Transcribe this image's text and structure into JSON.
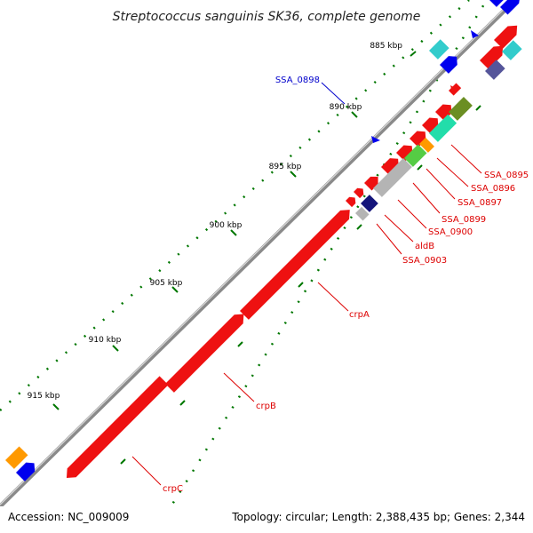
{
  "title": "Streptococcus sanguinis SK36, complete genome",
  "footer": {
    "accession": "Accession: NC_009009",
    "summary": "Topology: circular; Length: 2,388,435 bp; Genes: 2,344"
  },
  "colors": {
    "backbone": "#8a8a8a",
    "backbone_highlight": "#d8d8d8",
    "cds": "#ee1111",
    "label_red": "#dd0000",
    "label_blue": "#0000cc",
    "tick_green": "#007700",
    "rna_blue": "#0000ee",
    "cyan": "#33cccc",
    "navy": "#14147a",
    "gray": "#b4b4b4",
    "lime": "#55cc44",
    "teal": "#22ddaa",
    "olive": "#6b8e23",
    "orange": "#ff9900",
    "slate": "#55559a"
  },
  "scale_labels": [
    "885 kbp",
    "890 kbp",
    "895 kbp",
    "900 kbp",
    "905 kbp",
    "910 kbp",
    "915 kbp"
  ],
  "gene_labels": [
    {
      "text": "SSA_0898",
      "color": "blue"
    },
    {
      "text": "SSA_0895",
      "color": "red"
    },
    {
      "text": "SSA_0896",
      "color": "red"
    },
    {
      "text": "SSA_0897",
      "color": "red"
    },
    {
      "text": "SSA_0899",
      "color": "red"
    },
    {
      "text": "SSA_0900",
      "color": "red"
    },
    {
      "text": "aldB",
      "color": "red"
    },
    {
      "text": "SSA_0903",
      "color": "red"
    },
    {
      "text": "crpA",
      "color": "red"
    },
    {
      "text": "crpB",
      "color": "red"
    },
    {
      "text": "crpC",
      "color": "red"
    }
  ]
}
